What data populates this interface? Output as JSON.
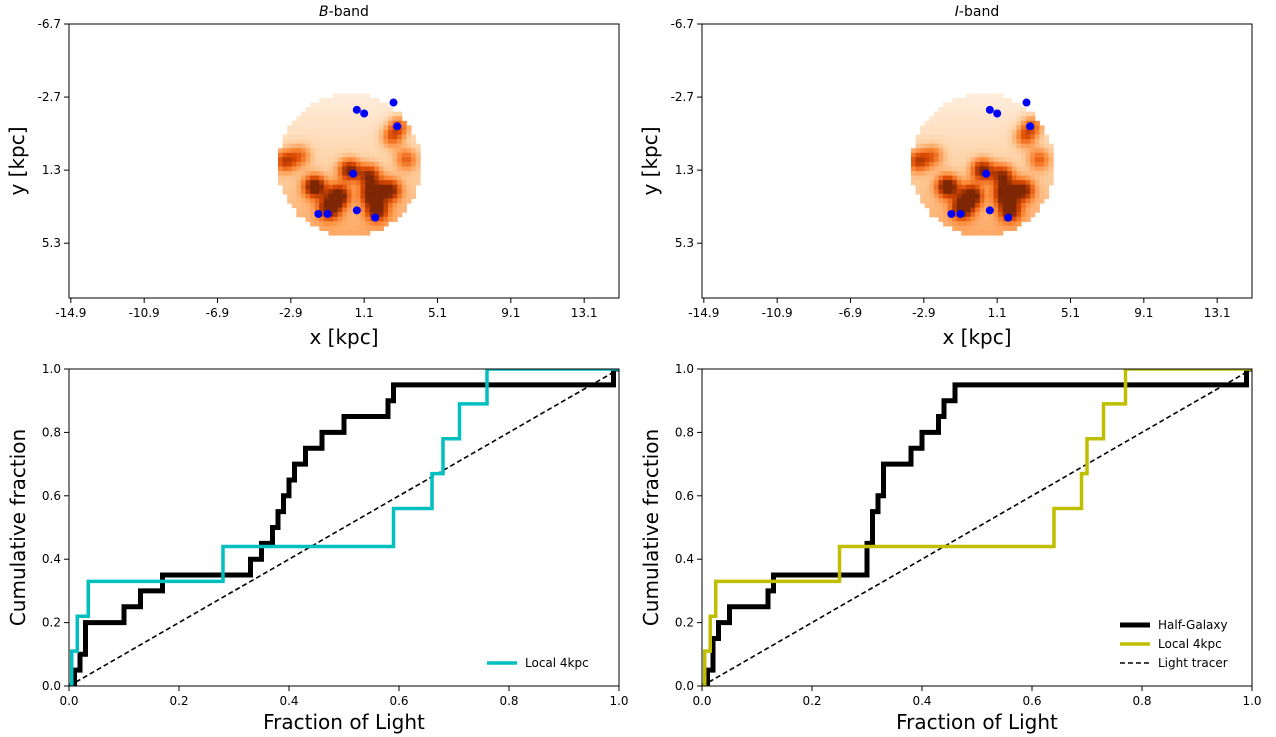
{
  "chart_data": [
    {
      "type": "heatmap",
      "panel": "top-left",
      "title_italic": "B",
      "title_rest": "-band",
      "xlabel": "x [kpc]",
      "ylabel": "y [kpc]",
      "xticks": [
        "-14.9",
        "-10.9",
        "-6.9",
        "-2.9",
        "1.1",
        "5.1",
        "9.1",
        "13.1"
      ],
      "yticks": [
        "-6.7",
        "-2.7",
        "1.3",
        "5.3"
      ],
      "xlim": [
        -15,
        15
      ],
      "ylim": [
        -6.7,
        8.3
      ],
      "y_inverted": true,
      "disk": {
        "cx": 0.3,
        "cy": 1.0,
        "r": 3.9
      },
      "colormap": "Oranges",
      "bright_blobs": [
        {
          "x": -1.6,
          "y": 2.2,
          "v": 0.95
        },
        {
          "x": -0.3,
          "y": 2.7,
          "v": 0.9
        },
        {
          "x": 1.5,
          "y": 2.6,
          "v": 0.85
        },
        {
          "x": 2.5,
          "y": 2.4,
          "v": 0.8
        },
        {
          "x": 0.3,
          "y": 1.3,
          "v": 0.8
        },
        {
          "x": 1.4,
          "y": 1.6,
          "v": 0.7
        },
        {
          "x": -3.2,
          "y": 0.8,
          "v": 0.6
        },
        {
          "x": -0.8,
          "y": 3.4,
          "v": 0.85
        },
        {
          "x": 1.8,
          "y": 3.5,
          "v": 0.8
        },
        {
          "x": 3.0,
          "y": -1.1,
          "v": 0.5
        },
        {
          "x": 2.6,
          "y": -0.5,
          "v": 0.45
        },
        {
          "x": 3.4,
          "y": 0.7,
          "v": 0.45
        },
        {
          "x": -2.4,
          "y": 0.5,
          "v": 0.4
        }
      ],
      "points": [
        {
          "x": 0.7,
          "y": -2.0
        },
        {
          "x": 1.1,
          "y": -1.8
        },
        {
          "x": 2.7,
          "y": -2.4
        },
        {
          "x": 2.9,
          "y": -1.1
        },
        {
          "x": 0.5,
          "y": 1.5
        },
        {
          "x": 0.7,
          "y": 3.5
        },
        {
          "x": -1.4,
          "y": 3.7
        },
        {
          "x": -0.9,
          "y": 3.7
        },
        {
          "x": 1.7,
          "y": 3.9
        }
      ],
      "point_color": "#0000ff"
    },
    {
      "type": "heatmap",
      "panel": "top-right",
      "title_italic": "I",
      "title_rest": "-band",
      "xlabel": "x [kpc]",
      "ylabel": "y [kpc]",
      "xticks": [
        "-14.9",
        "-10.9",
        "-6.9",
        "-2.9",
        "1.1",
        "5.1",
        "9.1",
        "13.1"
      ],
      "yticks": [
        "-6.7",
        "-2.7",
        "1.3",
        "5.3"
      ],
      "xlim": [
        -15,
        15
      ],
      "ylim": [
        -6.7,
        8.3
      ],
      "y_inverted": true,
      "disk": {
        "cx": 0.3,
        "cy": 1.0,
        "r": 3.9
      },
      "colormap": "Oranges",
      "bright_blobs": [
        {
          "x": -1.6,
          "y": 2.2,
          "v": 0.95
        },
        {
          "x": -0.3,
          "y": 2.7,
          "v": 0.9
        },
        {
          "x": 1.5,
          "y": 2.6,
          "v": 0.85
        },
        {
          "x": 2.5,
          "y": 2.4,
          "v": 0.8
        },
        {
          "x": 0.3,
          "y": 1.3,
          "v": 0.8
        },
        {
          "x": 1.4,
          "y": 1.6,
          "v": 0.7
        },
        {
          "x": -3.2,
          "y": 0.8,
          "v": 0.6
        },
        {
          "x": -0.8,
          "y": 3.4,
          "v": 0.85
        },
        {
          "x": 1.8,
          "y": 3.5,
          "v": 0.8
        },
        {
          "x": 3.0,
          "y": -1.1,
          "v": 0.5
        },
        {
          "x": 2.6,
          "y": -0.5,
          "v": 0.45
        },
        {
          "x": 3.4,
          "y": 0.7,
          "v": 0.45
        },
        {
          "x": -2.4,
          "y": 0.5,
          "v": 0.4
        }
      ],
      "points": [
        {
          "x": 0.7,
          "y": -2.0
        },
        {
          "x": 1.1,
          "y": -1.8
        },
        {
          "x": 2.7,
          "y": -2.4
        },
        {
          "x": 2.9,
          "y": -1.1
        },
        {
          "x": 0.5,
          "y": 1.5
        },
        {
          "x": 0.7,
          "y": 3.5
        },
        {
          "x": -1.4,
          "y": 3.7
        },
        {
          "x": -0.9,
          "y": 3.7
        },
        {
          "x": 1.7,
          "y": 3.9
        }
      ],
      "point_color": "#0000ff"
    },
    {
      "type": "line",
      "panel": "bottom-left",
      "xlabel": "Fraction of Light",
      "ylabel": "Cumulative fraction",
      "xlim": [
        0,
        1
      ],
      "ylim": [
        0,
        1
      ],
      "xticks": [
        "0.0",
        "0.2",
        "0.4",
        "0.6",
        "0.8",
        "1.0"
      ],
      "yticks": [
        "0.0",
        "0.2",
        "0.4",
        "0.6",
        "0.8",
        "1.0"
      ],
      "legend_placement": "lower-right",
      "series": [
        {
          "name": "",
          "color": "#000000",
          "width": 5,
          "style": "step",
          "x": [
            0.01,
            0.02,
            0.03,
            0.06,
            0.1,
            0.13,
            0.17,
            0.2,
            0.28,
            0.33,
            0.35,
            0.37,
            0.38,
            0.39,
            0.4,
            0.41,
            0.42,
            0.43,
            0.44,
            0.46,
            0.48,
            0.5,
            0.54,
            0.57,
            0.58,
            0.59,
            0.6,
            0.99
          ],
          "y": [
            0.05,
            0.1,
            0.2,
            0.2,
            0.25,
            0.3,
            0.35,
            0.35,
            0.35,
            0.4,
            0.45,
            0.5,
            0.55,
            0.6,
            0.65,
            0.7,
            0.7,
            0.75,
            0.75,
            0.8,
            0.8,
            0.85,
            0.85,
            0.85,
            0.9,
            0.95,
            0.95,
            1.0
          ]
        },
        {
          "name": "Local 4kpc",
          "color": "#00bfbf",
          "width": 3.5,
          "style": "step",
          "x": [
            0.005,
            0.015,
            0.035,
            0.1,
            0.28,
            0.59,
            0.66,
            0.68,
            0.71,
            0.76,
            0.99
          ],
          "y": [
            0.11,
            0.22,
            0.33,
            0.33,
            0.44,
            0.56,
            0.67,
            0.78,
            0.89,
            1.0,
            1.0
          ]
        },
        {
          "name": "",
          "color": "#000000",
          "width": 1.6,
          "style": "dashed",
          "x": [
            0,
            1
          ],
          "y": [
            0,
            1
          ]
        }
      ],
      "legend": [
        {
          "label": "Local 4kpc",
          "color": "#00bfbf",
          "width": 3.5,
          "dash": ""
        }
      ]
    },
    {
      "type": "line",
      "panel": "bottom-right",
      "xlabel": "Fraction of Light",
      "ylabel": "Cumulative fraction",
      "xlim": [
        0,
        1
      ],
      "ylim": [
        0,
        1
      ],
      "xticks": [
        "0.0",
        "0.2",
        "0.4",
        "0.6",
        "0.8",
        "1.0"
      ],
      "yticks": [
        "0.0",
        "0.2",
        "0.4",
        "0.6",
        "0.8",
        "1.0"
      ],
      "legend_placement": "lower-right",
      "series": [
        {
          "name": "Half-Galaxy",
          "color": "#000000",
          "width": 5,
          "style": "step",
          "x": [
            0.01,
            0.02,
            0.03,
            0.05,
            0.12,
            0.13,
            0.3,
            0.31,
            0.32,
            0.33,
            0.35,
            0.38,
            0.4,
            0.43,
            0.44,
            0.45,
            0.46,
            0.48,
            0.99
          ],
          "y": [
            0.05,
            0.15,
            0.2,
            0.25,
            0.3,
            0.35,
            0.45,
            0.55,
            0.6,
            0.7,
            0.7,
            0.75,
            0.8,
            0.85,
            0.9,
            0.9,
            0.95,
            0.95,
            1.0
          ]
        },
        {
          "name": "Local 4kpc",
          "color": "#bfbf00",
          "width": 3.5,
          "style": "step",
          "x": [
            0.005,
            0.015,
            0.025,
            0.09,
            0.25,
            0.64,
            0.69,
            0.7,
            0.73,
            0.77,
            0.99
          ],
          "y": [
            0.11,
            0.22,
            0.33,
            0.33,
            0.44,
            0.56,
            0.67,
            0.78,
            0.89,
            1.0,
            1.0
          ]
        },
        {
          "name": "Light tracer",
          "color": "#000000",
          "width": 1.6,
          "style": "dashed",
          "x": [
            0,
            1
          ],
          "y": [
            0,
            1
          ]
        }
      ],
      "legend": [
        {
          "label": "Half-Galaxy",
          "color": "#000000",
          "width": 5,
          "dash": ""
        },
        {
          "label": "Local 4kpc",
          "color": "#bfbf00",
          "width": 3.5,
          "dash": ""
        },
        {
          "label": "Light tracer",
          "color": "#000000",
          "width": 1.6,
          "dash": "5,3"
        }
      ]
    }
  ]
}
